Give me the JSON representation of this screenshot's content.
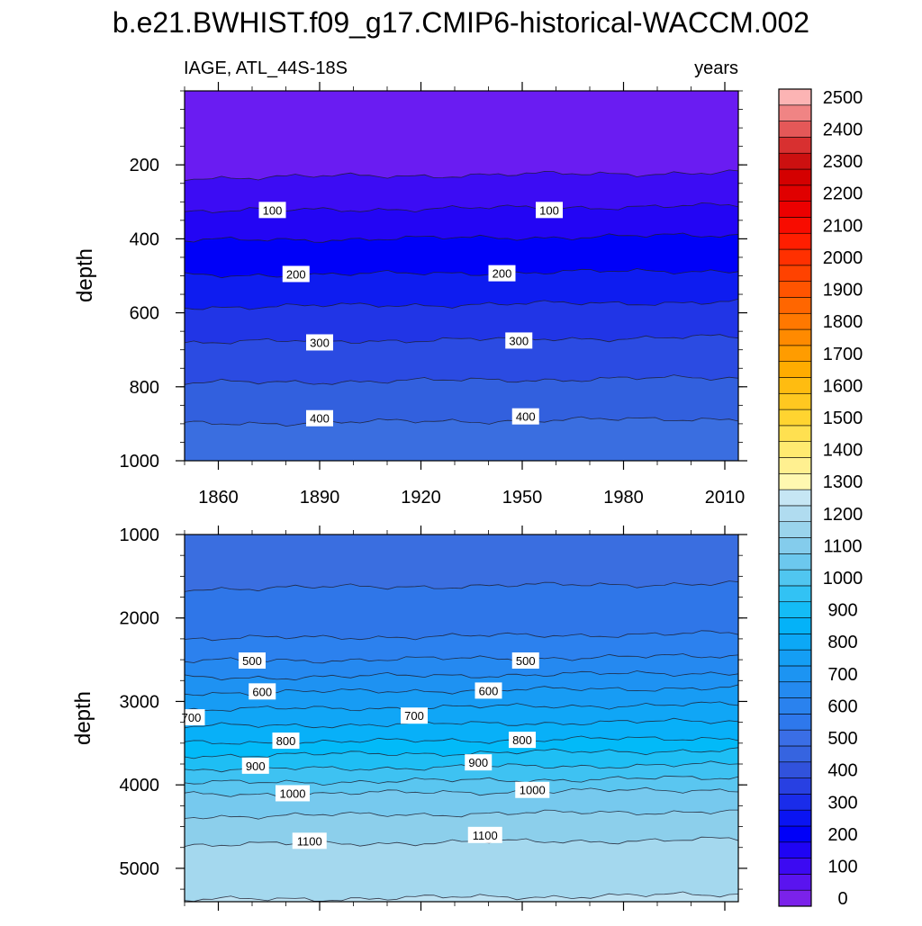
{
  "title": "b.e21.BWHIST.f09_g17.CMIP6-historical-WACCM.002",
  "subtitle_left": "IAGE, ATL_44S-18S",
  "subtitle_right": "years",
  "chart_data": {
    "type": "contour",
    "variable": "IAGE",
    "units": "years",
    "region": "ATL_44S-18S",
    "x_ticks": [
      1860,
      1890,
      1920,
      1950,
      1980,
      2010
    ],
    "xlim": [
      1850,
      2014
    ],
    "upper_panel": {
      "ylabel": "depth",
      "ylim": [
        0,
        1000
      ],
      "y_inverted": true,
      "y_ticks": [
        200,
        400,
        600,
        800,
        1000
      ],
      "fill_bands": [
        {
          "from": 0,
          "to": 50,
          "color": "#6a1cf2"
        },
        {
          "from": 50,
          "to": 100,
          "color": "#3c0cf4"
        },
        {
          "from": 100,
          "to": 150,
          "color": "#2305f4"
        },
        {
          "from": 150,
          "to": 200,
          "color": "#0000f8"
        },
        {
          "from": 200,
          "to": 250,
          "color": "#0e1cf0"
        },
        {
          "from": 250,
          "to": 300,
          "color": "#2135e6"
        },
        {
          "from": 300,
          "to": 350,
          "color": "#2b4be2"
        },
        {
          "from": 350,
          "to": 400,
          "color": "#3260de"
        },
        {
          "from": 400,
          "to": 450,
          "color": "#3a6ee0"
        }
      ],
      "contour_depths": [
        {
          "level": 50,
          "depth": 235
        },
        {
          "level": 100,
          "depth": 325
        },
        {
          "level": 150,
          "depth": 405
        },
        {
          "level": 200,
          "depth": 500
        },
        {
          "level": 250,
          "depth": 585
        },
        {
          "level": 300,
          "depth": 680
        },
        {
          "level": 350,
          "depth": 790
        },
        {
          "level": 400,
          "depth": 900
        }
      ],
      "contour_labels": [
        {
          "text": "100",
          "year": 1876,
          "depth": 322
        },
        {
          "text": "100",
          "year": 1958,
          "depth": 322
        },
        {
          "text": "200",
          "year": 1883,
          "depth": 495
        },
        {
          "text": "200",
          "year": 1944,
          "depth": 493
        },
        {
          "text": "300",
          "year": 1890,
          "depth": 680
        },
        {
          "text": "300",
          "year": 1949,
          "depth": 675
        },
        {
          "text": "400",
          "year": 1890,
          "depth": 885
        },
        {
          "text": "400",
          "year": 1951,
          "depth": 880
        }
      ]
    },
    "lower_panel": {
      "ylabel": "depth",
      "ylim": [
        1000,
        5400
      ],
      "y_inverted": true,
      "y_ticks": [
        1000,
        2000,
        3000,
        4000,
        5000
      ],
      "fill_bands": [
        {
          "from": 400,
          "to": 450,
          "color": "#3a6ee0"
        },
        {
          "from": 450,
          "to": 500,
          "color": "#2f76e8"
        },
        {
          "from": 500,
          "to": 550,
          "color": "#2c81ee"
        },
        {
          "from": 550,
          "to": 600,
          "color": "#2589f0"
        },
        {
          "from": 600,
          "to": 650,
          "color": "#1e92f2"
        },
        {
          "from": 650,
          "to": 700,
          "color": "#179cf4"
        },
        {
          "from": 700,
          "to": 750,
          "color": "#10a6f6"
        },
        {
          "from": 750,
          "to": 800,
          "color": "#08b0f8"
        },
        {
          "from": 800,
          "to": 850,
          "color": "#02baf8"
        },
        {
          "from": 850,
          "to": 900,
          "color": "#1ebef4"
        },
        {
          "from": 900,
          "to": 950,
          "color": "#3ec2f2"
        },
        {
          "from": 950,
          "to": 1000,
          "color": "#5ac6f0"
        },
        {
          "from": 1000,
          "to": 1050,
          "color": "#76c9ee"
        },
        {
          "from": 1050,
          "to": 1100,
          "color": "#8ccfeb"
        },
        {
          "from": 1100,
          "to": 1150,
          "color": "#a4d8ee"
        },
        {
          "from": 1150,
          "to": 1200,
          "color": "#bee2f2"
        }
      ],
      "contour_depths": [
        {
          "level": 450,
          "depth": 1650
        },
        {
          "level": 500,
          "depth": 2250
        },
        {
          "level": 550,
          "depth": 2520
        },
        {
          "level": 600,
          "depth": 2720
        },
        {
          "level": 650,
          "depth": 2900
        },
        {
          "level": 700,
          "depth": 3100
        },
        {
          "level": 750,
          "depth": 3300
        },
        {
          "level": 800,
          "depth": 3500
        },
        {
          "level": 850,
          "depth": 3650
        },
        {
          "level": 900,
          "depth": 3820
        },
        {
          "level": 950,
          "depth": 3980
        },
        {
          "level": 1000,
          "depth": 4120
        },
        {
          "level": 1050,
          "depth": 4380
        },
        {
          "level": 1100,
          "depth": 4720
        },
        {
          "level": 1150,
          "depth": 5380
        }
      ],
      "contour_labels": [
        {
          "text": "500",
          "year": 1870,
          "depth": 2510
        },
        {
          "text": "500",
          "year": 1951,
          "depth": 2510
        },
        {
          "text": "600",
          "year": 1873,
          "depth": 2880
        },
        {
          "text": "600",
          "year": 1940,
          "depth": 2870
        },
        {
          "text": "700",
          "year": 1852,
          "depth": 3190
        },
        {
          "text": "700",
          "year": 1918,
          "depth": 3170
        },
        {
          "text": "800",
          "year": 1880,
          "depth": 3470
        },
        {
          "text": "800",
          "year": 1950,
          "depth": 3460
        },
        {
          "text": "900",
          "year": 1871,
          "depth": 3770
        },
        {
          "text": "900",
          "year": 1937,
          "depth": 3730
        },
        {
          "text": "1000",
          "year": 1882,
          "depth": 4100
        },
        {
          "text": "1000",
          "year": 1953,
          "depth": 4060
        },
        {
          "text": "1100",
          "year": 1887,
          "depth": 4670
        },
        {
          "text": "1100",
          "year": 1939,
          "depth": 4600
        }
      ]
    },
    "colorbar": {
      "labels": [
        0,
        100,
        200,
        300,
        400,
        500,
        600,
        700,
        800,
        900,
        1000,
        1100,
        1200,
        1300,
        1400,
        1500,
        1600,
        1700,
        1800,
        1900,
        2000,
        2100,
        2200,
        2300,
        2400,
        2500
      ],
      "colors": [
        "#7b22ea",
        "#5a14ef",
        "#3c0af2",
        "#1f04f4",
        "#0000f8",
        "#0a14f2",
        "#1a2cea",
        "#2840e2",
        "#3152dc",
        "#3664e0",
        "#3a6ee6",
        "#2e78ec",
        "#2a82ee",
        "#248af0",
        "#1c94f2",
        "#149ef4",
        "#0ca8f6",
        "#04b2f8",
        "#14bcf6",
        "#32c2f4",
        "#50c6f0",
        "#6cc8ee",
        "#84ccec",
        "#9ad4ec",
        "#b0dcf0",
        "#c6e6f4",
        "#fff8b0",
        "#fff090",
        "#ffea70",
        "#ffe050",
        "#ffd430",
        "#ffc820",
        "#ffbc10",
        "#ffac00",
        "#ff9c00",
        "#ff8a00",
        "#ff7800",
        "#ff6600",
        "#ff5400",
        "#ff4200",
        "#ff3000",
        "#ff1e00",
        "#f80c00",
        "#ec0000",
        "#e00000",
        "#d40000",
        "#cc1010",
        "#d83030",
        "#e45858",
        "#f08484",
        "#fcb4b4"
      ]
    }
  }
}
